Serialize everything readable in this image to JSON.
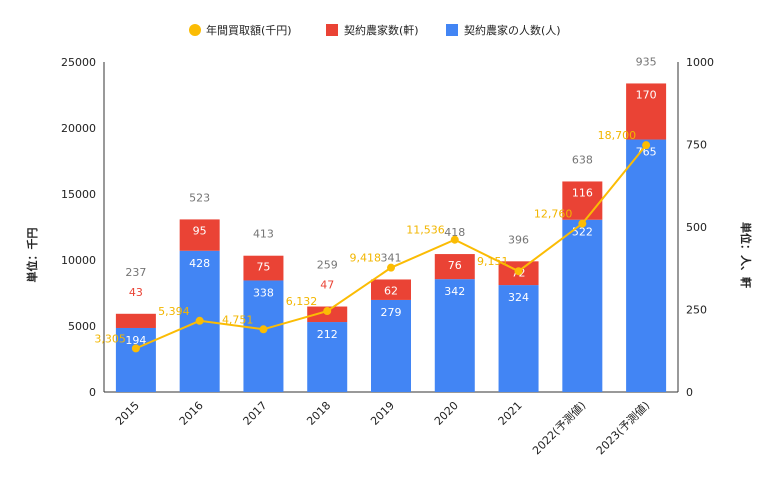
{
  "chart_data": {
    "type": "bar",
    "stacked": true,
    "categories": [
      "2015",
      "2016",
      "2017",
      "2018",
      "2019",
      "2020",
      "2021",
      "2022(予測値)",
      "2023(予測値)"
    ],
    "series": [
      {
        "name": "契約農家の人数(人)",
        "axis": "right",
        "color": "#4285f4",
        "label_color": "#222222",
        "values": [
          194,
          428,
          338,
          212,
          279,
          342,
          324,
          522,
          765
        ]
      },
      {
        "name": "契約農家数(軒)",
        "axis": "right",
        "color": "#ea4335",
        "label_color": "#ea4335",
        "values": [
          43,
          95,
          75,
          47,
          62,
          76,
          72,
          116,
          170
        ]
      }
    ],
    "totals": [
      237,
      523,
      413,
      259,
      341,
      418,
      396,
      638,
      935
    ],
    "line": {
      "name": "年間買取額(千円)",
      "axis": "left",
      "color": "#fbbc04",
      "values": [
        3305,
        5394,
        4751,
        6132,
        9418,
        11536,
        9151,
        12760,
        18700
      ],
      "labels": [
        "3,305",
        "5,394",
        "4,751",
        "6,132",
        "9,418",
        "11,536",
        "9,151",
        "12,760",
        "18,700"
      ]
    },
    "y_left": {
      "label": "単位：千円",
      "min": 0,
      "max": 25000,
      "ticks": [
        "0",
        "5000",
        "10000",
        "15000",
        "20000",
        "25000"
      ]
    },
    "y_right": {
      "label": "単位：人、軒",
      "min": 0,
      "max": 1000,
      "ticks": [
        "0",
        "250",
        "500",
        "750",
        "1000"
      ]
    },
    "legend": [
      "年間買取額(千円)",
      "契約農家数(軒)",
      "契約農家の人数(人)"
    ],
    "legend_position": "top",
    "grid": false
  }
}
